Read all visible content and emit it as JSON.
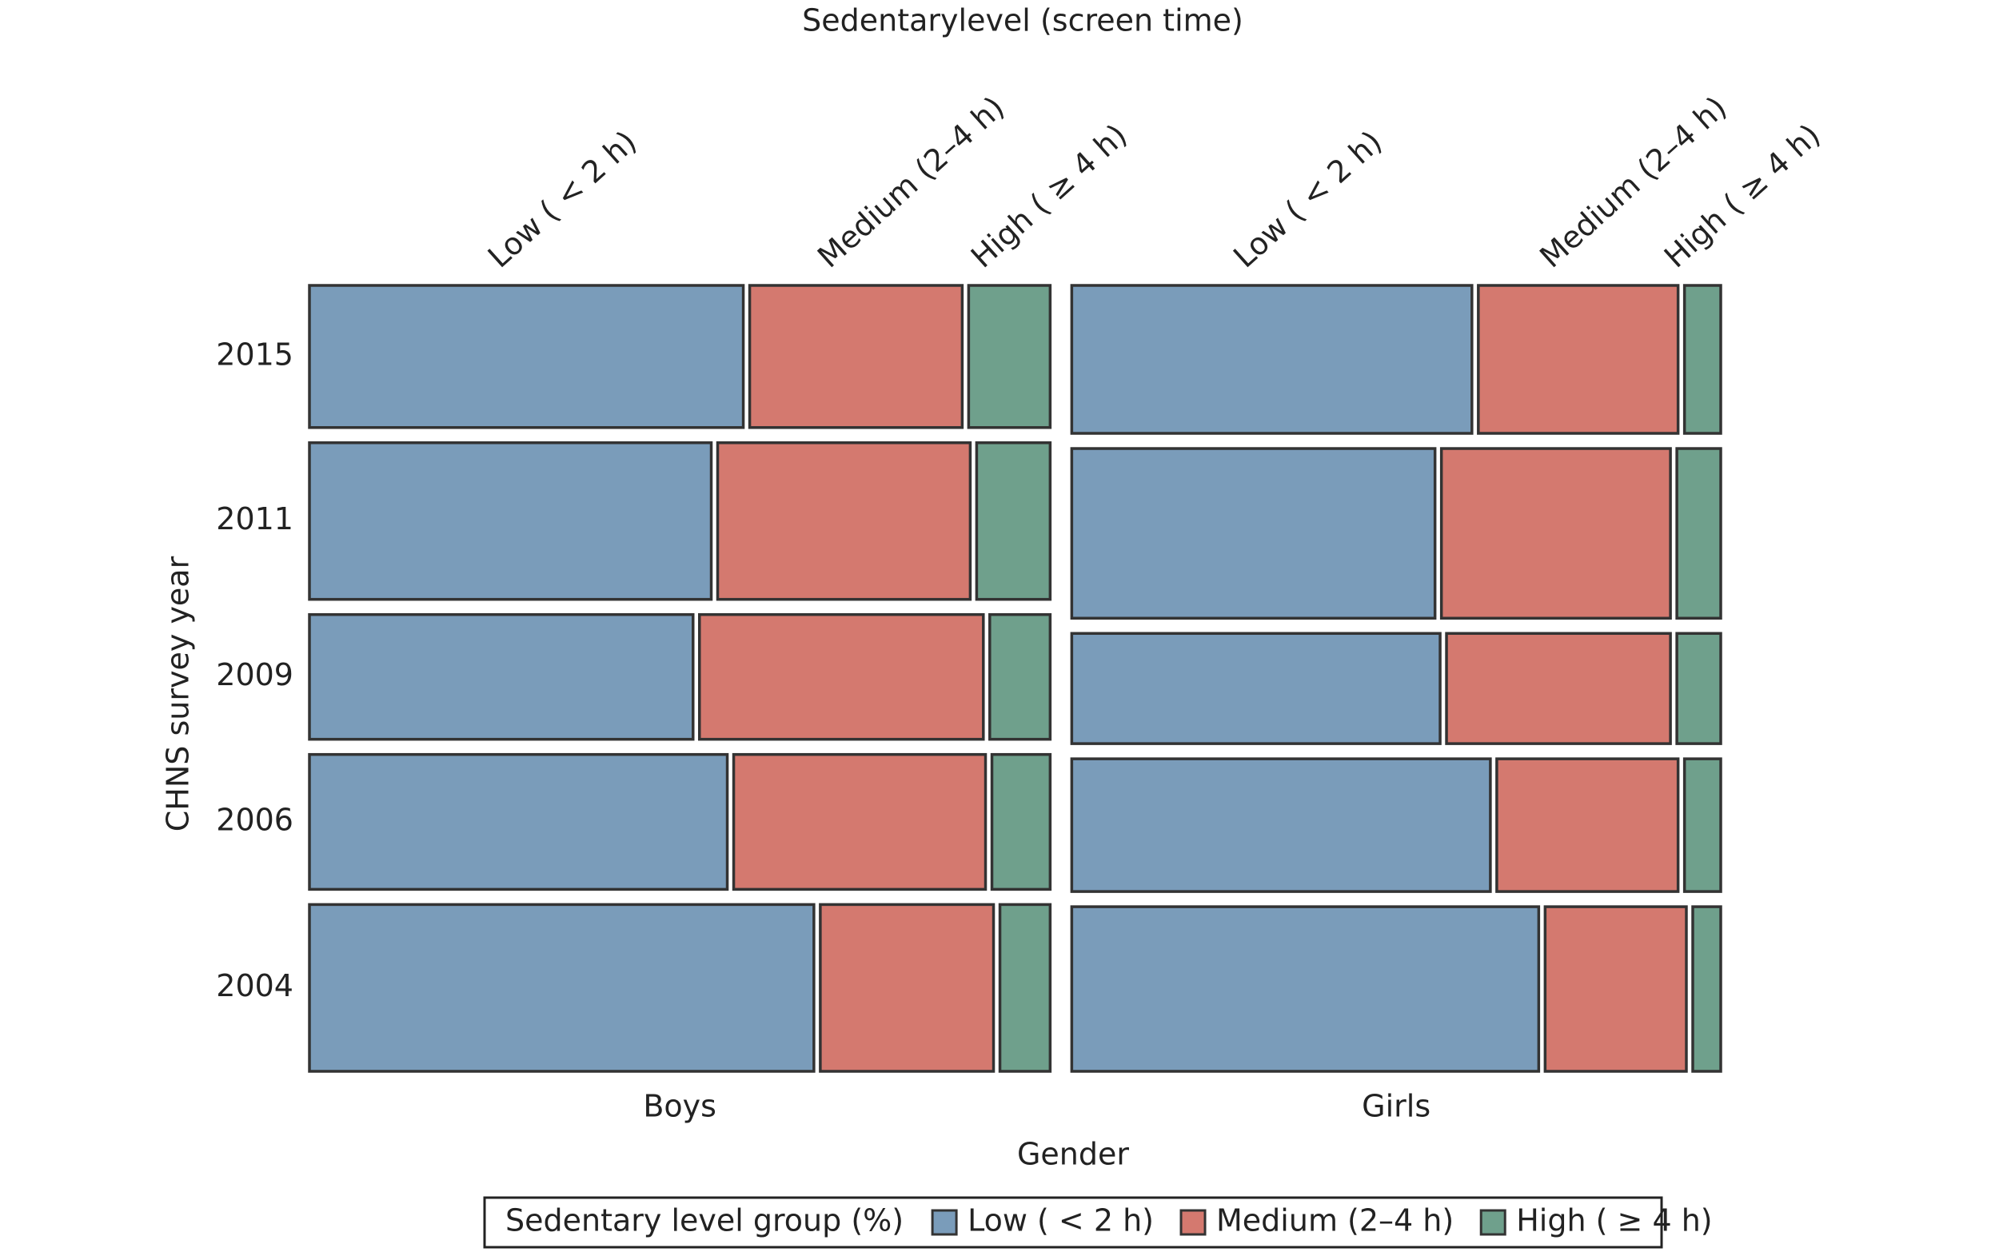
{
  "chart_data": {
    "type": "mosaic",
    "title": "Sedentarylevel (screen time)",
    "x_label": "Gender",
    "y_label": "CHNS survey year",
    "categories": [
      "Boys",
      "Girls"
    ],
    "column_shares": [
      53.3,
      46.7
    ],
    "years": [
      "2015",
      "2011",
      "2009",
      "2006",
      "2004"
    ],
    "year_shares": [
      [
        19.6,
        21.6,
        17.2,
        18.6,
        23.0
      ],
      [
        20.4,
        23.4,
        15.2,
        18.3,
        22.7
      ]
    ],
    "legend_title": "Sedentary level group (%)",
    "series": [
      {
        "name": "Low ( < 2 h)",
        "color": "#7a9cba",
        "values": [
          [
            59.6,
            55.2,
            52.7,
            57.4,
            69.3
          ],
          [
            62.9,
            57.1,
            57.9,
            65.8,
            73.4
          ]
        ]
      },
      {
        "name": "Medium (2–4 h)",
        "color": "#d4796f",
        "values": [
          [
            29.2,
            34.7,
            39.0,
            34.6,
            23.8
          ],
          [
            31.4,
            36.0,
            35.2,
            28.5,
            22.2
          ]
        ]
      },
      {
        "name": "High ( ≥ 4 h)",
        "color": "#6fa08c",
        "values": [
          [
            11.2,
            10.1,
            8.3,
            8.0,
            6.9
          ],
          [
            5.7,
            6.9,
            6.9,
            5.7,
            4.4
          ]
        ]
      }
    ]
  }
}
